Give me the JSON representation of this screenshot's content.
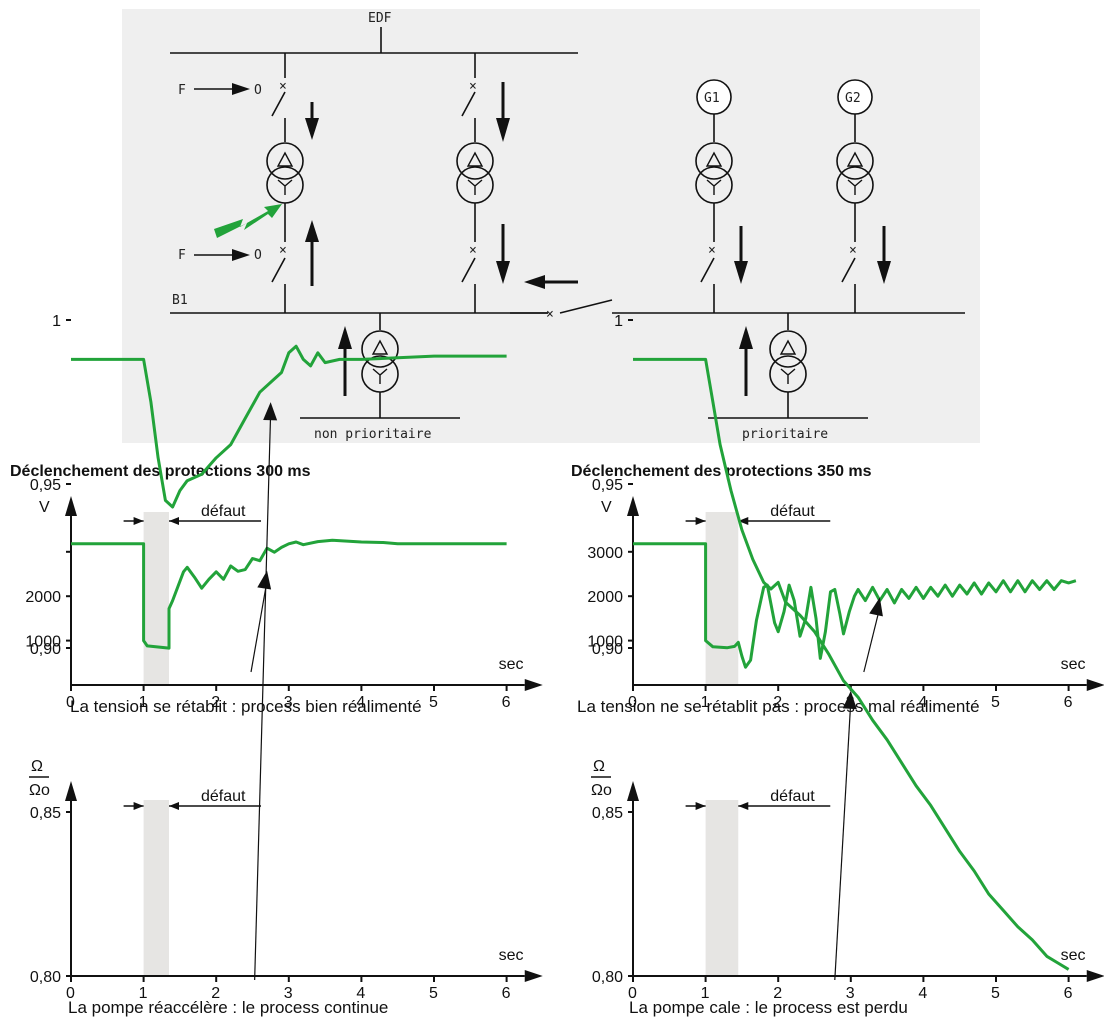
{
  "diagram": {
    "top_bus_label": "EDF",
    "bottom_bus_label": "B1",
    "command_label": "F",
    "open_label": "O",
    "generators": [
      "G1",
      "G2"
    ],
    "loads": [
      "non prioritaire",
      "prioritaire"
    ],
    "fault_color": "#22a33a",
    "background": "#efefef"
  },
  "charts": [
    {
      "title": "Déclenchement des protections 300 ms",
      "quantity": "voltage",
      "y_label": "V",
      "x_unit": "sec",
      "fault_label": "défaut",
      "fault_start": 1.0,
      "fault_end": 1.35,
      "caption": "La tension se rétablit : process bien réalimenté",
      "annotation_x": 2.7,
      "x_ticks": [
        "0",
        "1",
        "2",
        "3",
        "4",
        "5",
        "6"
      ],
      "y_ticks": [
        "2000",
        "1000"
      ]
    },
    {
      "title": "Déclenchement des protections 350 ms",
      "quantity": "voltage",
      "y_label": "V",
      "x_unit": "sec",
      "fault_label": "défaut",
      "fault_start": 1.0,
      "fault_end": 1.45,
      "caption": "La tension ne se rétablit pas : process mal réalimenté",
      "annotation_x": 3.4,
      "x_ticks": [
        "0",
        "1",
        "2",
        "3",
        "4",
        "5",
        "6"
      ],
      "y_ticks": [
        "3000",
        "2000",
        "1000"
      ]
    },
    {
      "quantity": "speed_ratio",
      "y_label_num": "Ω",
      "y_label_den": "Ωo",
      "x_unit": "sec",
      "fault_label": "défaut",
      "fault_start": 1.0,
      "fault_end": 1.35,
      "caption": "La pompe réaccélère : le process continue",
      "annotation_x": 2.75,
      "x_ticks": [
        "0",
        "1",
        "2",
        "3",
        "4",
        "5",
        "6"
      ],
      "y_ticks": [
        "1",
        "0,95",
        "0,90",
        "0,85",
        "0,80"
      ]
    },
    {
      "quantity": "speed_ratio",
      "y_label_num": "Ω",
      "y_label_den": "Ωo",
      "x_unit": "sec",
      "fault_label": "défaut",
      "fault_start": 1.0,
      "fault_end": 1.45,
      "caption": "La pompe cale : le process est perdu",
      "annotation_x": 3.0,
      "x_ticks": [
        "0",
        "1",
        "2",
        "3",
        "4",
        "5",
        "6"
      ],
      "y_ticks": [
        "1",
        "0,95",
        "0,90",
        "0,85",
        "0,80"
      ]
    }
  ],
  "chart_data": [
    {
      "type": "line",
      "series": [
        {
          "values": [
            [
              0,
              3180
            ],
            [
              1,
              3180
            ],
            [
              1,
              1000
            ],
            [
              1.05,
              880
            ],
            [
              1.35,
              830
            ],
            [
              1.35,
              1720
            ],
            [
              1.4,
              1900
            ],
            [
              1.55,
              2550
            ],
            [
              1.6,
              2650
            ],
            [
              1.7,
              2430
            ],
            [
              1.8,
              2180
            ],
            [
              1.9,
              2380
            ],
            [
              2.0,
              2550
            ],
            [
              2.1,
              2380
            ],
            [
              2.2,
              2680
            ],
            [
              2.3,
              2560
            ],
            [
              2.4,
              2600
            ],
            [
              2.5,
              2850
            ],
            [
              2.6,
              2800
            ],
            [
              2.7,
              3080
            ],
            [
              2.8,
              2990
            ],
            [
              2.9,
              3100
            ],
            [
              3.0,
              3180
            ],
            [
              3.1,
              3220
            ],
            [
              3.2,
              3160
            ],
            [
              3.4,
              3230
            ],
            [
              3.6,
              3260
            ],
            [
              3.8,
              3240
            ],
            [
              4.0,
              3220
            ],
            [
              4.3,
              3210
            ],
            [
              4.5,
              3180
            ],
            [
              5.0,
              3180
            ],
            [
              6.0,
              3180
            ]
          ]
        }
      ],
      "xlim": [
        0,
        6.3
      ],
      "ylim": [
        0,
        3900
      ]
    },
    {
      "type": "line",
      "series": [
        {
          "values": [
            [
              0,
              3180
            ],
            [
              1,
              3180
            ],
            [
              1,
              1000
            ],
            [
              1.1,
              860
            ],
            [
              1.3,
              840
            ],
            [
              1.4,
              870
            ],
            [
              1.45,
              960
            ],
            [
              1.5,
              650
            ],
            [
              1.55,
              400
            ],
            [
              1.62,
              560
            ],
            [
              1.7,
              1450
            ],
            [
              1.8,
              2200
            ],
            [
              1.85,
              2250
            ],
            [
              1.95,
              1400
            ],
            [
              2.0,
              1200
            ],
            [
              2.08,
              1650
            ],
            [
              2.15,
              2250
            ],
            [
              2.22,
              1900
            ],
            [
              2.3,
              1100
            ],
            [
              2.38,
              1500
            ],
            [
              2.45,
              2200
            ],
            [
              2.52,
              1500
            ],
            [
              2.58,
              600
            ],
            [
              2.65,
              1200
            ],
            [
              2.72,
              2100
            ],
            [
              2.78,
              2150
            ],
            [
              2.85,
              1600
            ],
            [
              2.9,
              1150
            ],
            [
              2.98,
              1650
            ],
            [
              3.05,
              2000
            ],
            [
              3.1,
              2150
            ],
            [
              3.2,
              1900
            ],
            [
              3.3,
              2200
            ],
            [
              3.4,
              1900
            ],
            [
              3.5,
              2150
            ],
            [
              3.6,
              1850
            ],
            [
              3.7,
              2150
            ],
            [
              3.8,
              1950
            ],
            [
              3.9,
              2200
            ],
            [
              4.0,
              1950
            ],
            [
              4.1,
              2200
            ],
            [
              4.2,
              2000
            ],
            [
              4.3,
              2250
            ],
            [
              4.4,
              2000
            ],
            [
              4.5,
              2250
            ],
            [
              4.6,
              2050
            ],
            [
              4.7,
              2300
            ],
            [
              4.8,
              2050
            ],
            [
              4.9,
              2300
            ],
            [
              5.0,
              2100
            ],
            [
              5.1,
              2350
            ],
            [
              5.2,
              2100
            ],
            [
              5.3,
              2350
            ],
            [
              5.4,
              2100
            ],
            [
              5.5,
              2350
            ],
            [
              5.6,
              2150
            ],
            [
              5.7,
              2350
            ],
            [
              5.8,
              2150
            ],
            [
              5.9,
              2350
            ],
            [
              6.0,
              2300
            ],
            [
              6.1,
              2350
            ]
          ]
        }
      ],
      "xlim": [
        0,
        6.3
      ],
      "ylim": [
        0,
        3900
      ]
    },
    {
      "type": "line",
      "series": [
        {
          "values": [
            [
              0,
              0.988
            ],
            [
              1,
              0.988
            ],
            [
              1.1,
              0.975
            ],
            [
              1.2,
              0.958
            ],
            [
              1.3,
              0.945
            ],
            [
              1.4,
              0.943
            ],
            [
              1.5,
              0.948
            ],
            [
              1.6,
              0.951
            ],
            [
              1.8,
              0.953
            ],
            [
              2.0,
              0.958
            ],
            [
              2.2,
              0.962
            ],
            [
              2.4,
              0.97
            ],
            [
              2.6,
              0.978
            ],
            [
              2.8,
              0.982
            ],
            [
              2.9,
              0.984
            ],
            [
              3.0,
              0.99
            ],
            [
              3.1,
              0.992
            ],
            [
              3.2,
              0.988
            ],
            [
              3.3,
              0.986
            ],
            [
              3.4,
              0.99
            ],
            [
              3.5,
              0.987
            ],
            [
              3.7,
              0.988
            ],
            [
              4.0,
              0.988
            ],
            [
              5.0,
              0.989
            ],
            [
              6.0,
              0.989
            ]
          ]
        }
      ],
      "xlim": [
        0,
        6.3
      ],
      "ylim": [
        0.8,
        1.02
      ]
    },
    {
      "type": "line",
      "series": [
        {
          "values": [
            [
              0,
              0.988
            ],
            [
              1,
              0.988
            ],
            [
              1.1,
              0.975
            ],
            [
              1.2,
              0.962
            ],
            [
              1.35,
              0.948
            ],
            [
              1.5,
              0.936
            ],
            [
              1.65,
              0.927
            ],
            [
              1.8,
              0.92
            ],
            [
              1.9,
              0.918
            ],
            [
              2.0,
              0.92
            ],
            [
              2.1,
              0.914
            ],
            [
              2.3,
              0.91
            ],
            [
              2.5,
              0.905
            ],
            [
              2.7,
              0.898
            ],
            [
              2.9,
              0.89
            ],
            [
              3.1,
              0.885
            ],
            [
              3.3,
              0.878
            ],
            [
              3.5,
              0.872
            ],
            [
              3.7,
              0.865
            ],
            [
              3.9,
              0.858
            ],
            [
              4.1,
              0.852
            ],
            [
              4.3,
              0.845
            ],
            [
              4.5,
              0.838
            ],
            [
              4.7,
              0.832
            ],
            [
              4.9,
              0.825
            ],
            [
              5.1,
              0.82
            ],
            [
              5.3,
              0.815
            ],
            [
              5.5,
              0.811
            ],
            [
              5.7,
              0.806
            ],
            [
              5.85,
              0.804
            ],
            [
              6.0,
              0.802
            ]
          ]
        }
      ],
      "xlim": [
        0,
        6.3
      ],
      "ylim": [
        0.8,
        1.02
      ]
    }
  ]
}
